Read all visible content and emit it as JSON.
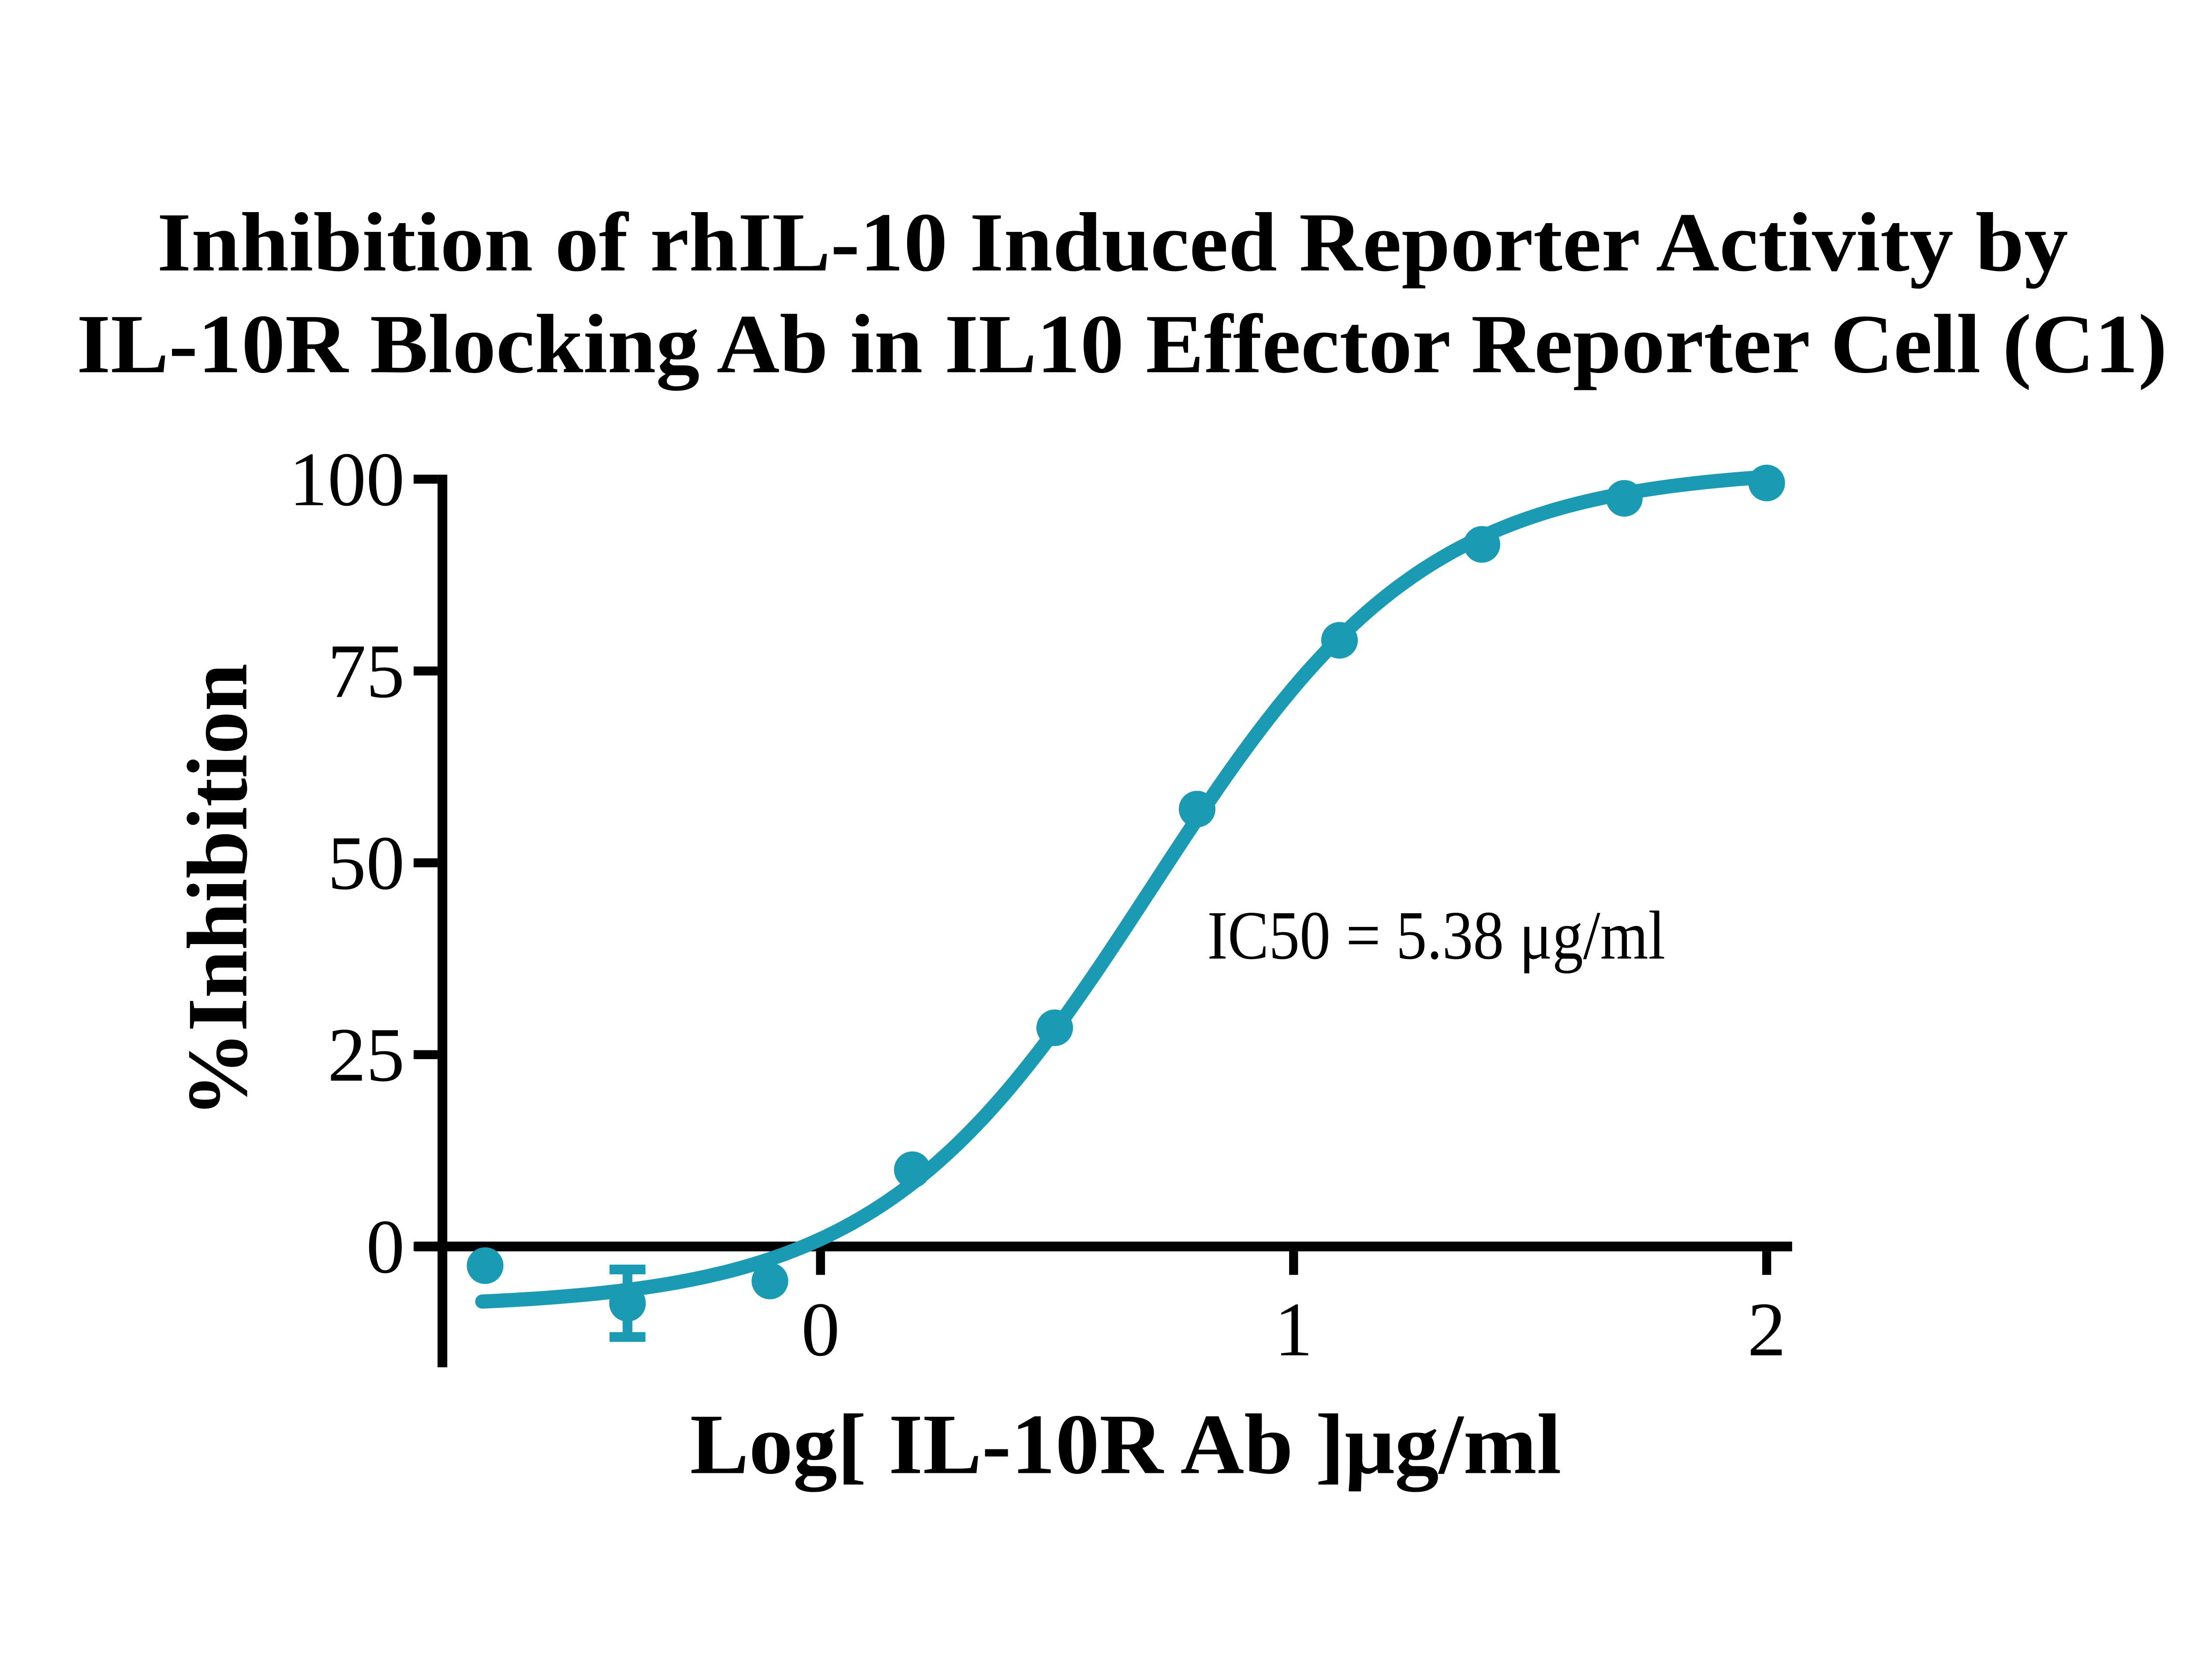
{
  "title": {
    "line1": "Inhibition of rhIL-10 Induced Reporter Activity by",
    "line2": "IL-10R Blocking Ab in IL10 Effector Reporter Cell (C1)"
  },
  "annotation": {
    "ic50_label": "IC50 = 5.38 μg/ml"
  },
  "chart_data": {
    "type": "scatter",
    "title": "Inhibition of rhIL-10 Induced Reporter Activity by IL-10R Blocking Ab in IL10 Effector Reporter Cell (C1)",
    "xlabel": "Log[ IL-10R Ab ]μg/ml",
    "ylabel": "%Inhibition",
    "x_ticks": [
      0,
      1,
      2
    ],
    "y_ticks": [
      0,
      25,
      50,
      75,
      100
    ],
    "xlim": [
      -0.85,
      2.05
    ],
    "ylim": [
      -15,
      100
    ],
    "grid": false,
    "legend": "none",
    "series_color": "#1B9AB3",
    "marker_radius_px": 49,
    "ic50_value": "5.38 μg/ml",
    "points": [
      {
        "log_x": -0.709,
        "y": -2.5,
        "y_error": null
      },
      {
        "log_x": -0.408,
        "y": -7.4,
        "y_error": 4.4
      },
      {
        "log_x": -0.107,
        "y": -4.5,
        "y_error": null
      },
      {
        "log_x": 0.194,
        "y": 10.0,
        "y_error": null
      },
      {
        "log_x": 0.495,
        "y": 28.5,
        "y_error": null
      },
      {
        "log_x": 0.796,
        "y": 57.0,
        "y_error": null
      },
      {
        "log_x": 1.097,
        "y": 79.0,
        "y_error": null
      },
      {
        "log_x": 1.398,
        "y": 91.5,
        "y_error": null
      },
      {
        "log_x": 1.699,
        "y": 97.5,
        "y_error": null
      },
      {
        "log_x": 2.0,
        "y": 99.5,
        "y_error": null
      }
    ],
    "fit_curve": {
      "model": "4PL sigmoidal dose-response",
      "bottom": -8.0,
      "top": 101.5,
      "hill_slope": 1.5,
      "log_ic50": 0.7,
      "x_start": -0.715,
      "x_end": 2.0
    }
  }
}
